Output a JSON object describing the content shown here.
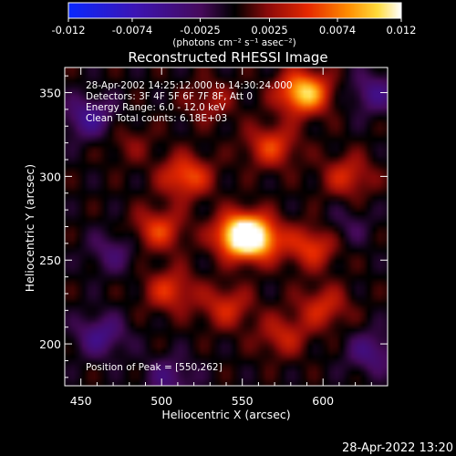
{
  "colorbar": {
    "tick_labels": [
      "-0.012",
      "-0.0074",
      "-0.0025",
      "0.0025",
      "0.0074",
      "0.012"
    ],
    "tick_values": [
      -0.012,
      -0.0074,
      -0.0025,
      0.0025,
      0.0074,
      0.012
    ],
    "range": [
      -0.012,
      0.012
    ],
    "units_label": "(photons cm⁻² s⁻¹ asec⁻²)"
  },
  "chart_data": {
    "type": "heatmap",
    "title": "Reconstructed RHESSI Image",
    "xlabel": "Heliocentric X (arcsec)",
    "ylabel": "Heliocentric Y (arcsec)",
    "xlim": [
      440,
      640
    ],
    "ylim": [
      175,
      365
    ],
    "xticks": [
      450,
      500,
      550,
      600
    ],
    "yticks": [
      200,
      250,
      300,
      350
    ],
    "grid": false,
    "info_lines": [
      "28-Apr-2002 14:25:12.000 to 14:30:24.000",
      "Detectors: 3F 4F 5F 6F 7F 8F, Att 0",
      "Energy Range: 6.0 - 12.0 keV",
      "Clean    Total counts: 6.18E+03"
    ],
    "peak_label": "Position of Peak = [550,262]",
    "peak_position": [
      550,
      262
    ],
    "sources": [
      {
        "x": 550,
        "y": 265,
        "value": 0.0135
      },
      {
        "x": 560,
        "y": 262,
        "value": 0.006
      },
      {
        "x": 588,
        "y": 350,
        "value": 0.0105
      },
      {
        "x": 515,
        "y": 300,
        "value": 0.0065
      },
      {
        "x": 568,
        "y": 318,
        "value": 0.0055
      },
      {
        "x": 498,
        "y": 268,
        "value": 0.0055
      },
      {
        "x": 505,
        "y": 232,
        "value": 0.005
      },
      {
        "x": 540,
        "y": 222,
        "value": 0.0045
      },
      {
        "x": 593,
        "y": 258,
        "value": 0.0055
      },
      {
        "x": 600,
        "y": 222,
        "value": 0.0045
      },
      {
        "x": 575,
        "y": 205,
        "value": 0.004
      },
      {
        "x": 615,
        "y": 300,
        "value": 0.0045
      },
      {
        "x": 530,
        "y": 345,
        "value": 0.003
      },
      {
        "x": 480,
        "y": 320,
        "value": 0.002
      },
      {
        "x": 462,
        "y": 205,
        "value": -0.0045
      },
      {
        "x": 455,
        "y": 335,
        "value": -0.005
      },
      {
        "x": 630,
        "y": 195,
        "value": -0.004
      },
      {
        "x": 632,
        "y": 350,
        "value": -0.004
      },
      {
        "x": 505,
        "y": 180,
        "value": -0.0035
      },
      {
        "x": 470,
        "y": 255,
        "value": -0.003
      },
      {
        "x": 615,
        "y": 270,
        "value": -0.002
      }
    ]
  },
  "footer": {
    "timestamp": "28-Apr-2022 13:20"
  }
}
